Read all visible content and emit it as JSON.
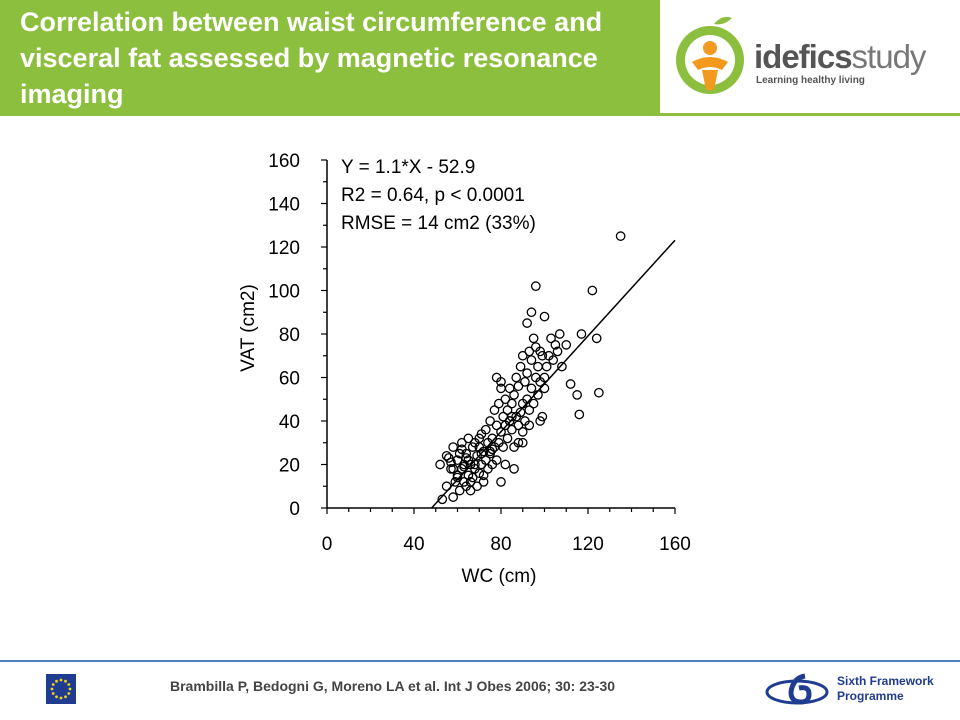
{
  "header": {
    "title": "Correlation between waist circumference and visceral fat assessed by magnetic resonance imaging",
    "brand_color": "#8dbf3f"
  },
  "logo": {
    "word_bold": "idefics",
    "word_light": "study",
    "tagline": "Learning healthy living",
    "icon": "apple-figure-icon"
  },
  "footer": {
    "citation": "Brambilla P, Bedogni G, Moreno LA et al. Int J Obes 2006; 30: 23-30",
    "program_line1": "Sixth Framework",
    "program_line2": "Programme",
    "eu_icon": "eu-flag-icon",
    "program_icon": "sixth-framework-icon",
    "line_color": "#4f7fb9"
  },
  "chart_data": {
    "type": "scatter",
    "xlabel": "WC (cm)",
    "ylabel": "VAT (cm2)",
    "xlim": [
      0,
      160
    ],
    "ylim": [
      0,
      160
    ],
    "xticks": [
      0,
      40,
      80,
      120,
      160
    ],
    "yticks": [
      0,
      20,
      40,
      60,
      80,
      100,
      120,
      140,
      160
    ],
    "grid": false,
    "annotations": [
      "Y = 1.1*X - 52.9",
      "R2 = 0.64, p < 0.0001",
      "RMSE = 14 cm2 (33%)"
    ],
    "regression": {
      "slope": 1.1,
      "intercept": -52.9,
      "x_range": [
        48,
        160
      ]
    },
    "x": [
      52,
      53,
      55,
      56,
      57,
      58,
      58,
      59,
      60,
      60,
      61,
      61,
      62,
      62,
      63,
      63,
      64,
      64,
      65,
      65,
      65,
      66,
      66,
      67,
      67,
      68,
      68,
      69,
      69,
      70,
      70,
      71,
      71,
      72,
      72,
      73,
      73,
      74,
      74,
      75,
      75,
      76,
      76,
      77,
      77,
      78,
      78,
      79,
      79,
      80,
      80,
      80,
      81,
      81,
      82,
      82,
      83,
      83,
      84,
      84,
      85,
      85,
      86,
      86,
      87,
      87,
      88,
      88,
      89,
      89,
      90,
      90,
      90,
      91,
      91,
      92,
      92,
      93,
      93,
      94,
      94,
      95,
      95,
      96,
      96,
      97,
      97,
      98,
      98,
      99,
      99,
      100,
      100,
      101,
      102,
      103,
      104,
      105,
      106,
      107,
      108,
      110,
      112,
      115,
      116,
      117,
      122,
      124,
      125,
      135,
      96,
      88,
      84,
      66,
      75,
      70,
      62,
      57,
      80,
      92,
      58,
      64,
      78,
      86,
      94,
      100,
      68,
      72,
      82,
      90,
      60,
      55,
      76,
      85,
      93,
      98,
      63,
      71
    ],
    "y": [
      20,
      4,
      10,
      23,
      18,
      5,
      28,
      12,
      15,
      22,
      8,
      25,
      18,
      30,
      12,
      20,
      10,
      25,
      15,
      22,
      32,
      8,
      20,
      14,
      28,
      18,
      30,
      10,
      24,
      16,
      28,
      20,
      34,
      12,
      26,
      22,
      36,
      18,
      30,
      25,
      40,
      20,
      32,
      28,
      45,
      22,
      38,
      30,
      48,
      12,
      35,
      55,
      28,
      42,
      38,
      50,
      32,
      45,
      40,
      55,
      36,
      48,
      18,
      52,
      42,
      60,
      38,
      56,
      44,
      65,
      30,
      48,
      70,
      40,
      58,
      50,
      62,
      45,
      72,
      55,
      68,
      48,
      78,
      60,
      74,
      52,
      65,
      58,
      72,
      42,
      70,
      60,
      55,
      65,
      70,
      78,
      68,
      75,
      72,
      80,
      65,
      75,
      57,
      52,
      43,
      80,
      100,
      78,
      53,
      125,
      102,
      30,
      40,
      12,
      26,
      32,
      27,
      21,
      58,
      85,
      18,
      23,
      60,
      28,
      90,
      88,
      20,
      15,
      20,
      35,
      14,
      24,
      27,
      42,
      38,
      40,
      19,
      25
    ]
  }
}
